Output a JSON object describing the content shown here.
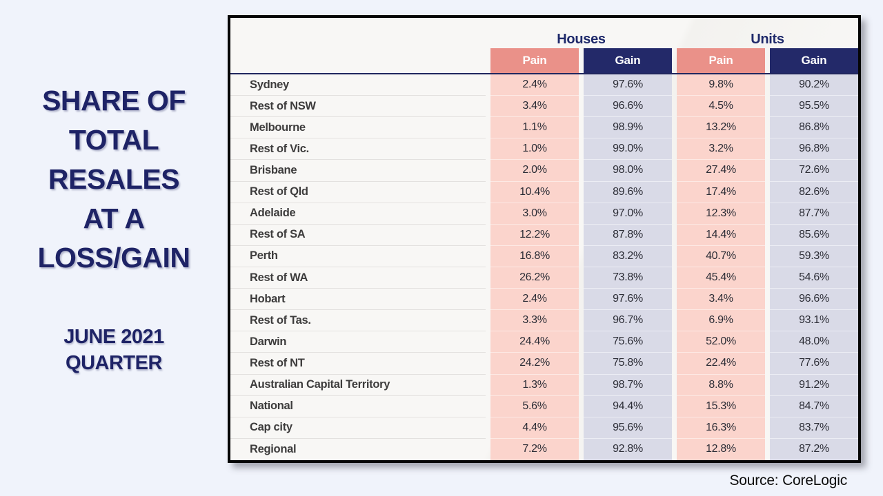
{
  "left_panel": {
    "title_lines": [
      "SHARE OF",
      "TOTAL",
      "RESALES",
      "AT A",
      "LOSS/GAIN"
    ],
    "subtitle_lines": [
      "JUNE 2021",
      "QUARTER"
    ]
  },
  "header": {
    "groups": [
      "Houses",
      "Units"
    ],
    "subs": [
      "Pain",
      "Gain",
      "Pain",
      "Gain"
    ]
  },
  "source": "Source: CoreLogic",
  "colors": {
    "page_background": "#f0f3fb",
    "panel_background": "#f8f7f5",
    "panel_border": "#050505",
    "title_navy": "#1e2366",
    "pain_header": "#ea9189",
    "gain_header": "#232969",
    "pain_cell": "#fbd4cc",
    "gain_cell": "#d9dae7",
    "header_rule_navy": "#20265e"
  },
  "chart_data": {
    "type": "table",
    "title": "SHARE OF TOTAL RESALES AT A LOSS/GAIN",
    "subtitle": "JUNE 2021 QUARTER",
    "column_groups": [
      "Houses",
      "Units"
    ],
    "columns": [
      "Houses Pain",
      "Houses Gain",
      "Units Pain",
      "Units Gain"
    ],
    "unit": "%",
    "categories": [
      "Sydney",
      "Rest of NSW",
      "Melbourne",
      "Rest of Vic.",
      "Brisbane",
      "Rest of Qld",
      "Adelaide",
      "Rest of SA",
      "Perth",
      "Rest of WA",
      "Hobart",
      "Rest of Tas.",
      "Darwin",
      "Rest of NT",
      "Australian Capital Territory",
      "National",
      "Cap city",
      "Regional"
    ],
    "series": [
      {
        "name": "Houses Pain",
        "values": [
          2.4,
          3.4,
          1.1,
          1.0,
          2.0,
          10.4,
          3.0,
          12.2,
          16.8,
          26.2,
          2.4,
          3.3,
          24.4,
          24.2,
          1.3,
          5.6,
          4.4,
          7.2
        ]
      },
      {
        "name": "Houses Gain",
        "values": [
          97.6,
          96.6,
          98.9,
          99.0,
          98.0,
          89.6,
          97.0,
          87.8,
          83.2,
          73.8,
          97.6,
          96.7,
          75.6,
          75.8,
          98.7,
          94.4,
          95.6,
          92.8
        ]
      },
      {
        "name": "Units Pain",
        "values": [
          9.8,
          4.5,
          13.2,
          3.2,
          27.4,
          17.4,
          12.3,
          14.4,
          40.7,
          45.4,
          3.4,
          6.9,
          52.0,
          22.4,
          8.8,
          15.3,
          16.3,
          12.8
        ]
      },
      {
        "name": "Units Gain",
        "values": [
          90.2,
          95.5,
          86.8,
          96.8,
          72.6,
          82.6,
          87.7,
          85.6,
          59.3,
          54.6,
          96.6,
          93.1,
          48.0,
          77.6,
          91.2,
          84.7,
          83.7,
          87.2
        ]
      }
    ]
  }
}
